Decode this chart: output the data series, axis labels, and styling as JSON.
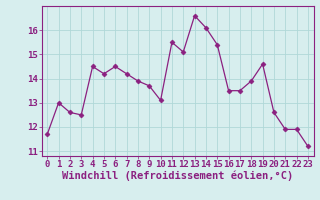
{
  "x": [
    0,
    1,
    2,
    3,
    4,
    5,
    6,
    7,
    8,
    9,
    10,
    11,
    12,
    13,
    14,
    15,
    16,
    17,
    18,
    19,
    20,
    21,
    22,
    23
  ],
  "y": [
    11.7,
    13.0,
    12.6,
    12.5,
    14.5,
    14.2,
    14.5,
    14.2,
    13.9,
    13.7,
    13.1,
    15.5,
    15.1,
    16.6,
    16.1,
    15.4,
    13.5,
    13.5,
    13.9,
    14.6,
    12.6,
    11.9,
    11.9,
    11.2
  ],
  "line_color": "#8b2080",
  "marker": "D",
  "marker_size": 2.5,
  "bg_color": "#d7eeee",
  "grid_color": "#b0d8d8",
  "xlabel": "Windchill (Refroidissement éolien,°C)",
  "xlabel_fontsize": 7.5,
  "xlim": [
    -0.5,
    23.5
  ],
  "ylim": [
    10.8,
    17.0
  ],
  "yticks": [
    11,
    12,
    13,
    14,
    15,
    16
  ],
  "xticks": [
    0,
    1,
    2,
    3,
    4,
    5,
    6,
    7,
    8,
    9,
    10,
    11,
    12,
    13,
    14,
    15,
    16,
    17,
    18,
    19,
    20,
    21,
    22,
    23
  ],
  "tick_fontsize": 6.5,
  "tick_color": "#8b2080",
  "spine_color": "#8b2080"
}
